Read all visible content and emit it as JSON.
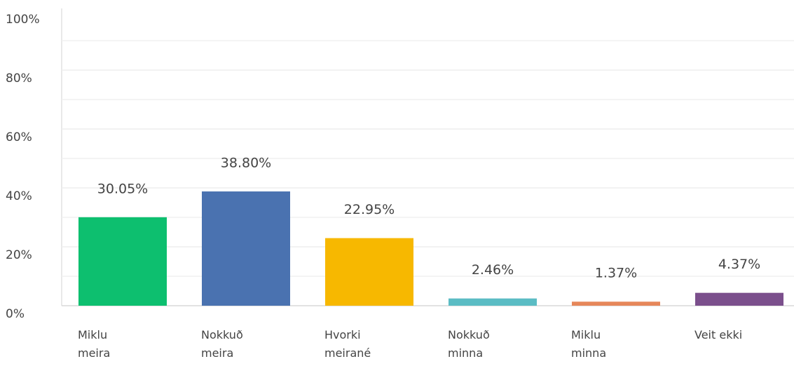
{
  "chart_data": {
    "type": "bar",
    "categories": [
      "Miklu meira",
      "Nokkuð meira",
      "Hvorki meirané",
      "Nokkuð minna",
      "Miklu minna",
      "Veit ekki"
    ],
    "values": [
      30.05,
      38.8,
      22.95,
      2.46,
      1.37,
      4.37
    ],
    "value_labels": [
      "30.05%",
      "38.80%",
      "22.95%",
      "2.46%",
      "1.37%",
      "4.37%"
    ],
    "colors": [
      "#0dbf6f",
      "#4a72b0",
      "#f7b800",
      "#5bbcc4",
      "#e6875a",
      "#7b4f8c"
    ],
    "ylim": [
      0,
      100
    ],
    "yticks": [
      {
        "value": 0,
        "label": "0%"
      },
      {
        "value": 20,
        "label": "20%"
      },
      {
        "value": 40,
        "label": "40%"
      },
      {
        "value": 60,
        "label": "60%"
      },
      {
        "value": 80,
        "label": "80%"
      },
      {
        "value": 100,
        "label": "100%"
      }
    ],
    "minor_yticks": [
      10,
      30,
      50,
      70,
      90
    ],
    "grid": true
  }
}
